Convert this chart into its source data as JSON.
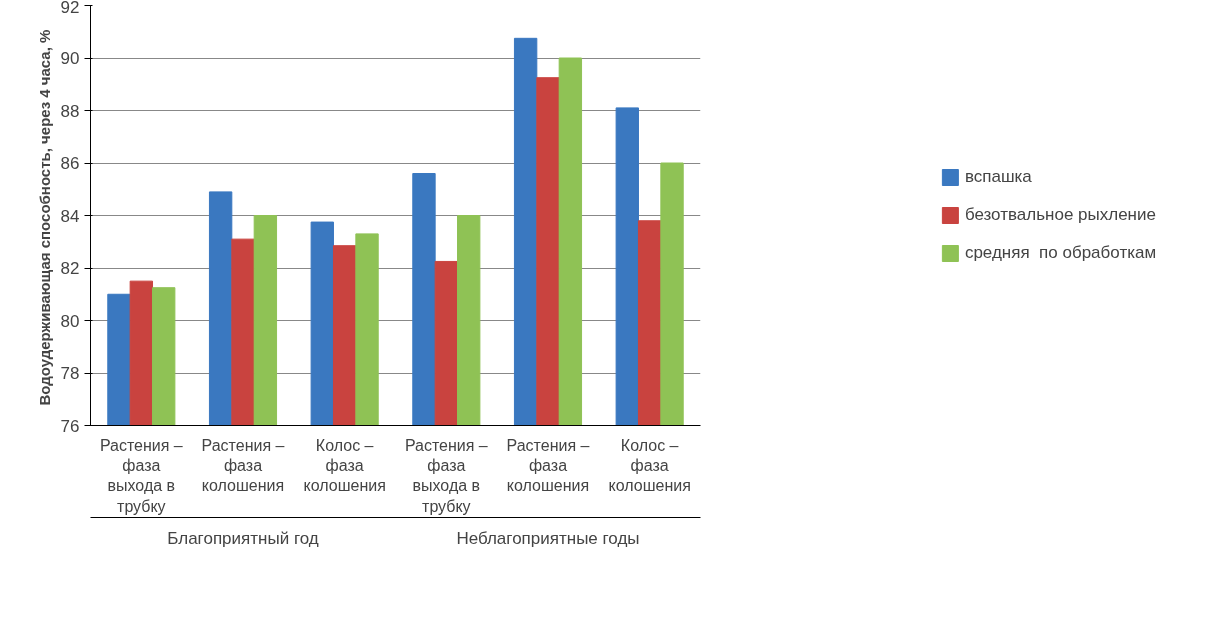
{
  "chart_data": {
    "type": "bar",
    "ylabel": "Водоудерживающая  способность, через 4 часа, %",
    "categories": [
      "Растения – фаза выхода в трубку",
      "Растения – фаза колошения",
      "Колос – фаза колошения",
      "Растения – фаза выхода в трубку",
      "Растения – фаза колошения",
      "Колос – фаза колошения"
    ],
    "series": [
      {
        "name": "вспашка",
        "color": "#3a78c0",
        "values": [
          81.0,
          84.9,
          83.75,
          85.6,
          90.75,
          88.1
        ]
      },
      {
        "name": "безотвальное рыхление",
        "color": "#c9433f",
        "values": [
          81.5,
          83.1,
          82.85,
          82.25,
          89.25,
          83.8
        ]
      },
      {
        "name": "средняя  по обработкам",
        "color": "#8fc255",
        "values": [
          81.25,
          84.0,
          83.3,
          84.0,
          90.0,
          86.0
        ]
      }
    ],
    "annotations": [
      "Благоприятный год",
      "Неблагоприятные годы"
    ],
    "ylim": [
      76,
      92
    ],
    "yticks": [
      76,
      78,
      80,
      82,
      84,
      86,
      88,
      90,
      92
    ],
    "grid": "y",
    "legend": "right"
  }
}
